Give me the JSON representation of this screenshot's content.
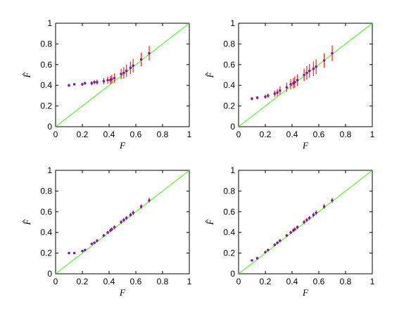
{
  "chart_data": [
    {
      "type": "scatter",
      "xlabel": "F",
      "ylabel": "F̂",
      "xlim": [
        0,
        1
      ],
      "ylim": [
        0,
        1
      ],
      "xticks": [
        "0",
        "0.2",
        "0.4",
        "0.6",
        "0.8",
        "1"
      ],
      "yticks": [
        "0",
        "0.2",
        "0.4",
        "0.6",
        "0.8",
        "1"
      ],
      "reference_line": {
        "x": [
          0,
          1
        ],
        "y": [
          0,
          1
        ],
        "color": "#33ff00"
      },
      "colors": {
        "point": "#7a1fa2",
        "errorbar": "#ff2a2a",
        "axes": "#000000"
      },
      "grid": false,
      "points": [
        {
          "x": 0.1,
          "y": 0.4,
          "err": 0.012
        },
        {
          "x": 0.14,
          "y": 0.41,
          "err": 0.012
        },
        {
          "x": 0.2,
          "y": 0.41,
          "err": 0.015
        },
        {
          "x": 0.22,
          "y": 0.42,
          "err": 0.015
        },
        {
          "x": 0.27,
          "y": 0.42,
          "err": 0.02
        },
        {
          "x": 0.29,
          "y": 0.43,
          "err": 0.02
        },
        {
          "x": 0.31,
          "y": 0.43,
          "err": 0.025
        },
        {
          "x": 0.36,
          "y": 0.44,
          "err": 0.03
        },
        {
          "x": 0.39,
          "y": 0.45,
          "err": 0.035
        },
        {
          "x": 0.41,
          "y": 0.45,
          "err": 0.04
        },
        {
          "x": 0.42,
          "y": 0.46,
          "err": 0.04
        },
        {
          "x": 0.44,
          "y": 0.47,
          "err": 0.045
        },
        {
          "x": 0.49,
          "y": 0.51,
          "err": 0.05
        },
        {
          "x": 0.51,
          "y": 0.52,
          "err": 0.055
        },
        {
          "x": 0.53,
          "y": 0.54,
          "err": 0.06
        },
        {
          "x": 0.56,
          "y": 0.57,
          "err": 0.06
        },
        {
          "x": 0.58,
          "y": 0.59,
          "err": 0.065
        },
        {
          "x": 0.64,
          "y": 0.65,
          "err": 0.065
        },
        {
          "x": 0.7,
          "y": 0.71,
          "err": 0.07
        }
      ]
    },
    {
      "type": "scatter",
      "xlabel": "F",
      "ylabel": "F̂",
      "xlim": [
        0,
        1
      ],
      "ylim": [
        0,
        1
      ],
      "xticks": [
        "0",
        "0.2",
        "0.4",
        "0.6",
        "0.8",
        "1"
      ],
      "yticks": [
        "0",
        "0.2",
        "0.4",
        "0.6",
        "0.8",
        "1"
      ],
      "reference_line": {
        "x": [
          0,
          1
        ],
        "y": [
          0,
          1
        ],
        "color": "#33ff00"
      },
      "colors": {
        "point": "#7a1fa2",
        "errorbar": "#ff2a2a",
        "axes": "#000000"
      },
      "grid": false,
      "points": [
        {
          "x": 0.1,
          "y": 0.27,
          "err": 0.015
        },
        {
          "x": 0.14,
          "y": 0.28,
          "err": 0.015
        },
        {
          "x": 0.2,
          "y": 0.29,
          "err": 0.02
        },
        {
          "x": 0.22,
          "y": 0.3,
          "err": 0.02
        },
        {
          "x": 0.27,
          "y": 0.32,
          "err": 0.03
        },
        {
          "x": 0.29,
          "y": 0.33,
          "err": 0.035
        },
        {
          "x": 0.31,
          "y": 0.35,
          "err": 0.04
        },
        {
          "x": 0.36,
          "y": 0.38,
          "err": 0.045
        },
        {
          "x": 0.39,
          "y": 0.41,
          "err": 0.05
        },
        {
          "x": 0.41,
          "y": 0.42,
          "err": 0.05
        },
        {
          "x": 0.42,
          "y": 0.43,
          "err": 0.055
        },
        {
          "x": 0.44,
          "y": 0.45,
          "err": 0.055
        },
        {
          "x": 0.49,
          "y": 0.5,
          "err": 0.06
        },
        {
          "x": 0.51,
          "y": 0.52,
          "err": 0.065
        },
        {
          "x": 0.53,
          "y": 0.54,
          "err": 0.065
        },
        {
          "x": 0.56,
          "y": 0.56,
          "err": 0.07
        },
        {
          "x": 0.58,
          "y": 0.58,
          "err": 0.07
        },
        {
          "x": 0.64,
          "y": 0.64,
          "err": 0.07
        },
        {
          "x": 0.7,
          "y": 0.71,
          "err": 0.075
        }
      ]
    },
    {
      "type": "scatter",
      "xlabel": "F",
      "ylabel": "F̂",
      "xlim": [
        0,
        1
      ],
      "ylim": [
        0,
        1
      ],
      "xticks": [
        "0",
        "0.2",
        "0.4",
        "0.6",
        "0.8",
        "1"
      ],
      "yticks": [
        "0",
        "0.2",
        "0.4",
        "0.6",
        "0.8",
        "1"
      ],
      "reference_line": {
        "x": [
          0,
          1
        ],
        "y": [
          0,
          1
        ],
        "color": "#33ff00"
      },
      "colors": {
        "point": "#7a1fa2",
        "errorbar": "#ff2a2a",
        "axes": "#000000"
      },
      "grid": false,
      "points": [
        {
          "x": 0.1,
          "y": 0.2,
          "err": 0.006
        },
        {
          "x": 0.14,
          "y": 0.2,
          "err": 0.006
        },
        {
          "x": 0.2,
          "y": 0.22,
          "err": 0.008
        },
        {
          "x": 0.22,
          "y": 0.23,
          "err": 0.01
        },
        {
          "x": 0.27,
          "y": 0.29,
          "err": 0.012
        },
        {
          "x": 0.29,
          "y": 0.3,
          "err": 0.012
        },
        {
          "x": 0.31,
          "y": 0.32,
          "err": 0.015
        },
        {
          "x": 0.36,
          "y": 0.37,
          "err": 0.015
        },
        {
          "x": 0.39,
          "y": 0.4,
          "err": 0.015
        },
        {
          "x": 0.41,
          "y": 0.42,
          "err": 0.018
        },
        {
          "x": 0.42,
          "y": 0.43,
          "err": 0.018
        },
        {
          "x": 0.44,
          "y": 0.45,
          "err": 0.018
        },
        {
          "x": 0.49,
          "y": 0.5,
          "err": 0.02
        },
        {
          "x": 0.51,
          "y": 0.52,
          "err": 0.02
        },
        {
          "x": 0.53,
          "y": 0.54,
          "err": 0.02
        },
        {
          "x": 0.56,
          "y": 0.57,
          "err": 0.02
        },
        {
          "x": 0.58,
          "y": 0.59,
          "err": 0.022
        },
        {
          "x": 0.64,
          "y": 0.65,
          "err": 0.022
        },
        {
          "x": 0.7,
          "y": 0.71,
          "err": 0.024
        }
      ]
    },
    {
      "type": "scatter",
      "xlabel": "F",
      "ylabel": "F̂",
      "xlim": [
        0,
        1
      ],
      "ylim": [
        0,
        1
      ],
      "xticks": [
        "0",
        "0.2",
        "0.4",
        "0.6",
        "0.8",
        "1"
      ],
      "yticks": [
        "0",
        "0.2",
        "0.4",
        "0.6",
        "0.8",
        "1"
      ],
      "reference_line": {
        "x": [
          0,
          1
        ],
        "y": [
          0,
          1
        ],
        "color": "#33ff00"
      },
      "colors": {
        "point": "#7a1fa2",
        "errorbar": "#ff2a2a",
        "axes": "#000000"
      },
      "grid": false,
      "points": [
        {
          "x": 0.1,
          "y": 0.13,
          "err": 0.008
        },
        {
          "x": 0.14,
          "y": 0.15,
          "err": 0.008
        },
        {
          "x": 0.2,
          "y": 0.21,
          "err": 0.01
        },
        {
          "x": 0.22,
          "y": 0.23,
          "err": 0.012
        },
        {
          "x": 0.27,
          "y": 0.28,
          "err": 0.014
        },
        {
          "x": 0.29,
          "y": 0.3,
          "err": 0.014
        },
        {
          "x": 0.31,
          "y": 0.32,
          "err": 0.016
        },
        {
          "x": 0.36,
          "y": 0.37,
          "err": 0.016
        },
        {
          "x": 0.39,
          "y": 0.4,
          "err": 0.016
        },
        {
          "x": 0.41,
          "y": 0.42,
          "err": 0.018
        },
        {
          "x": 0.42,
          "y": 0.43,
          "err": 0.018
        },
        {
          "x": 0.44,
          "y": 0.45,
          "err": 0.018
        },
        {
          "x": 0.49,
          "y": 0.5,
          "err": 0.02
        },
        {
          "x": 0.51,
          "y": 0.52,
          "err": 0.02
        },
        {
          "x": 0.53,
          "y": 0.54,
          "err": 0.02
        },
        {
          "x": 0.56,
          "y": 0.57,
          "err": 0.022
        },
        {
          "x": 0.58,
          "y": 0.59,
          "err": 0.022
        },
        {
          "x": 0.64,
          "y": 0.65,
          "err": 0.022
        },
        {
          "x": 0.7,
          "y": 0.71,
          "err": 0.024
        }
      ]
    }
  ]
}
